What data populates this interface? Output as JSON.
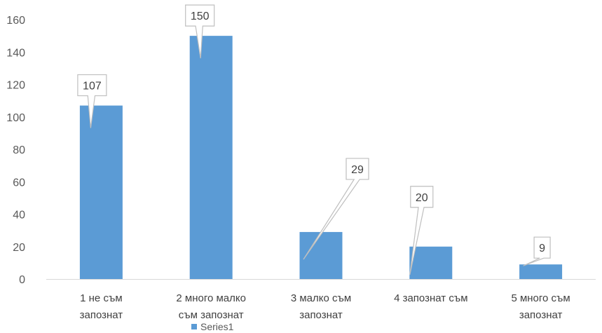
{
  "chart_data": {
    "type": "bar",
    "categories": [
      [
        "1 не съм",
        "запознат"
      ],
      [
        "2 много малко",
        "съм запознат"
      ],
      [
        "3 малко съм",
        "запознат"
      ],
      [
        "4 запознат съм"
      ],
      [
        "5 много съм",
        "запознат"
      ]
    ],
    "series": [
      {
        "name": "Series1",
        "values": [
          107,
          150,
          29,
          20,
          9
        ],
        "color": "#5b9bd5"
      }
    ],
    "ylim": [
      0,
      160
    ],
    "yticks": [
      0,
      20,
      40,
      60,
      80,
      100,
      120,
      140,
      160
    ],
    "grid": false,
    "legend_position": "bottom",
    "data_labels": "callouts"
  }
}
